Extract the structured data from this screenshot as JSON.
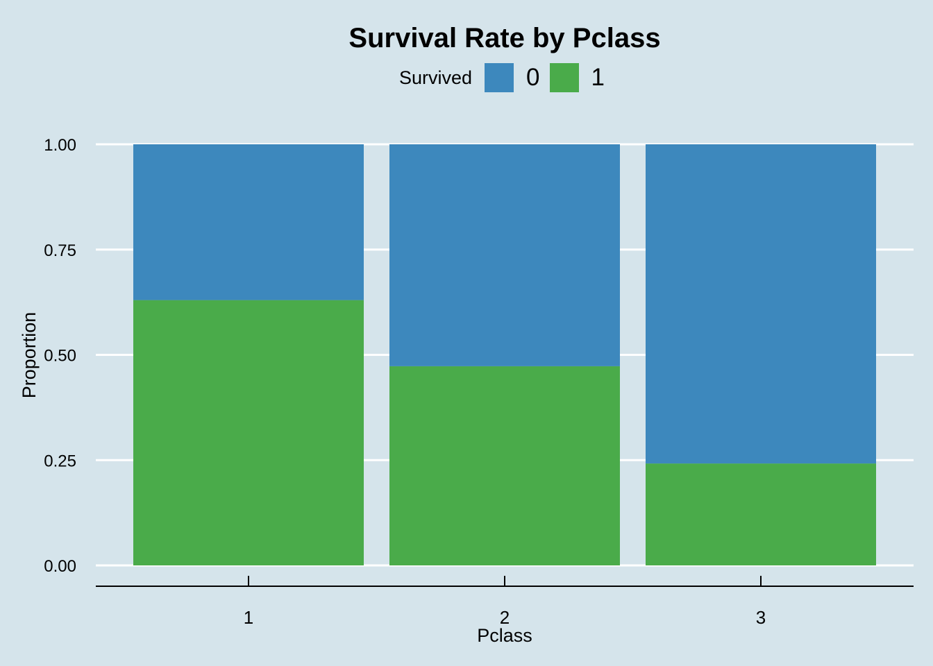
{
  "chart_data": {
    "type": "bar",
    "stacked": true,
    "title": "Survival Rate by Pclass",
    "xlabel": "Pclass",
    "ylabel": "Proportion",
    "categories": [
      "1",
      "2",
      "3"
    ],
    "ylim": [
      0,
      1
    ],
    "yticks": [
      "0.00",
      "0.25",
      "0.50",
      "0.75",
      "1.00"
    ],
    "legend": {
      "title": "Survived",
      "position": "top",
      "entries": [
        {
          "label": "0",
          "color": "#3d88bd"
        },
        {
          "label": "1",
          "color": "#4aab4a"
        }
      ]
    },
    "grid": "horizontal-major",
    "series": [
      {
        "name": "1",
        "color": "#4aab4a",
        "values": [
          0.63,
          0.473,
          0.242
        ]
      },
      {
        "name": "0",
        "color": "#3d88bd",
        "values": [
          0.37,
          0.527,
          0.758
        ]
      }
    ]
  }
}
